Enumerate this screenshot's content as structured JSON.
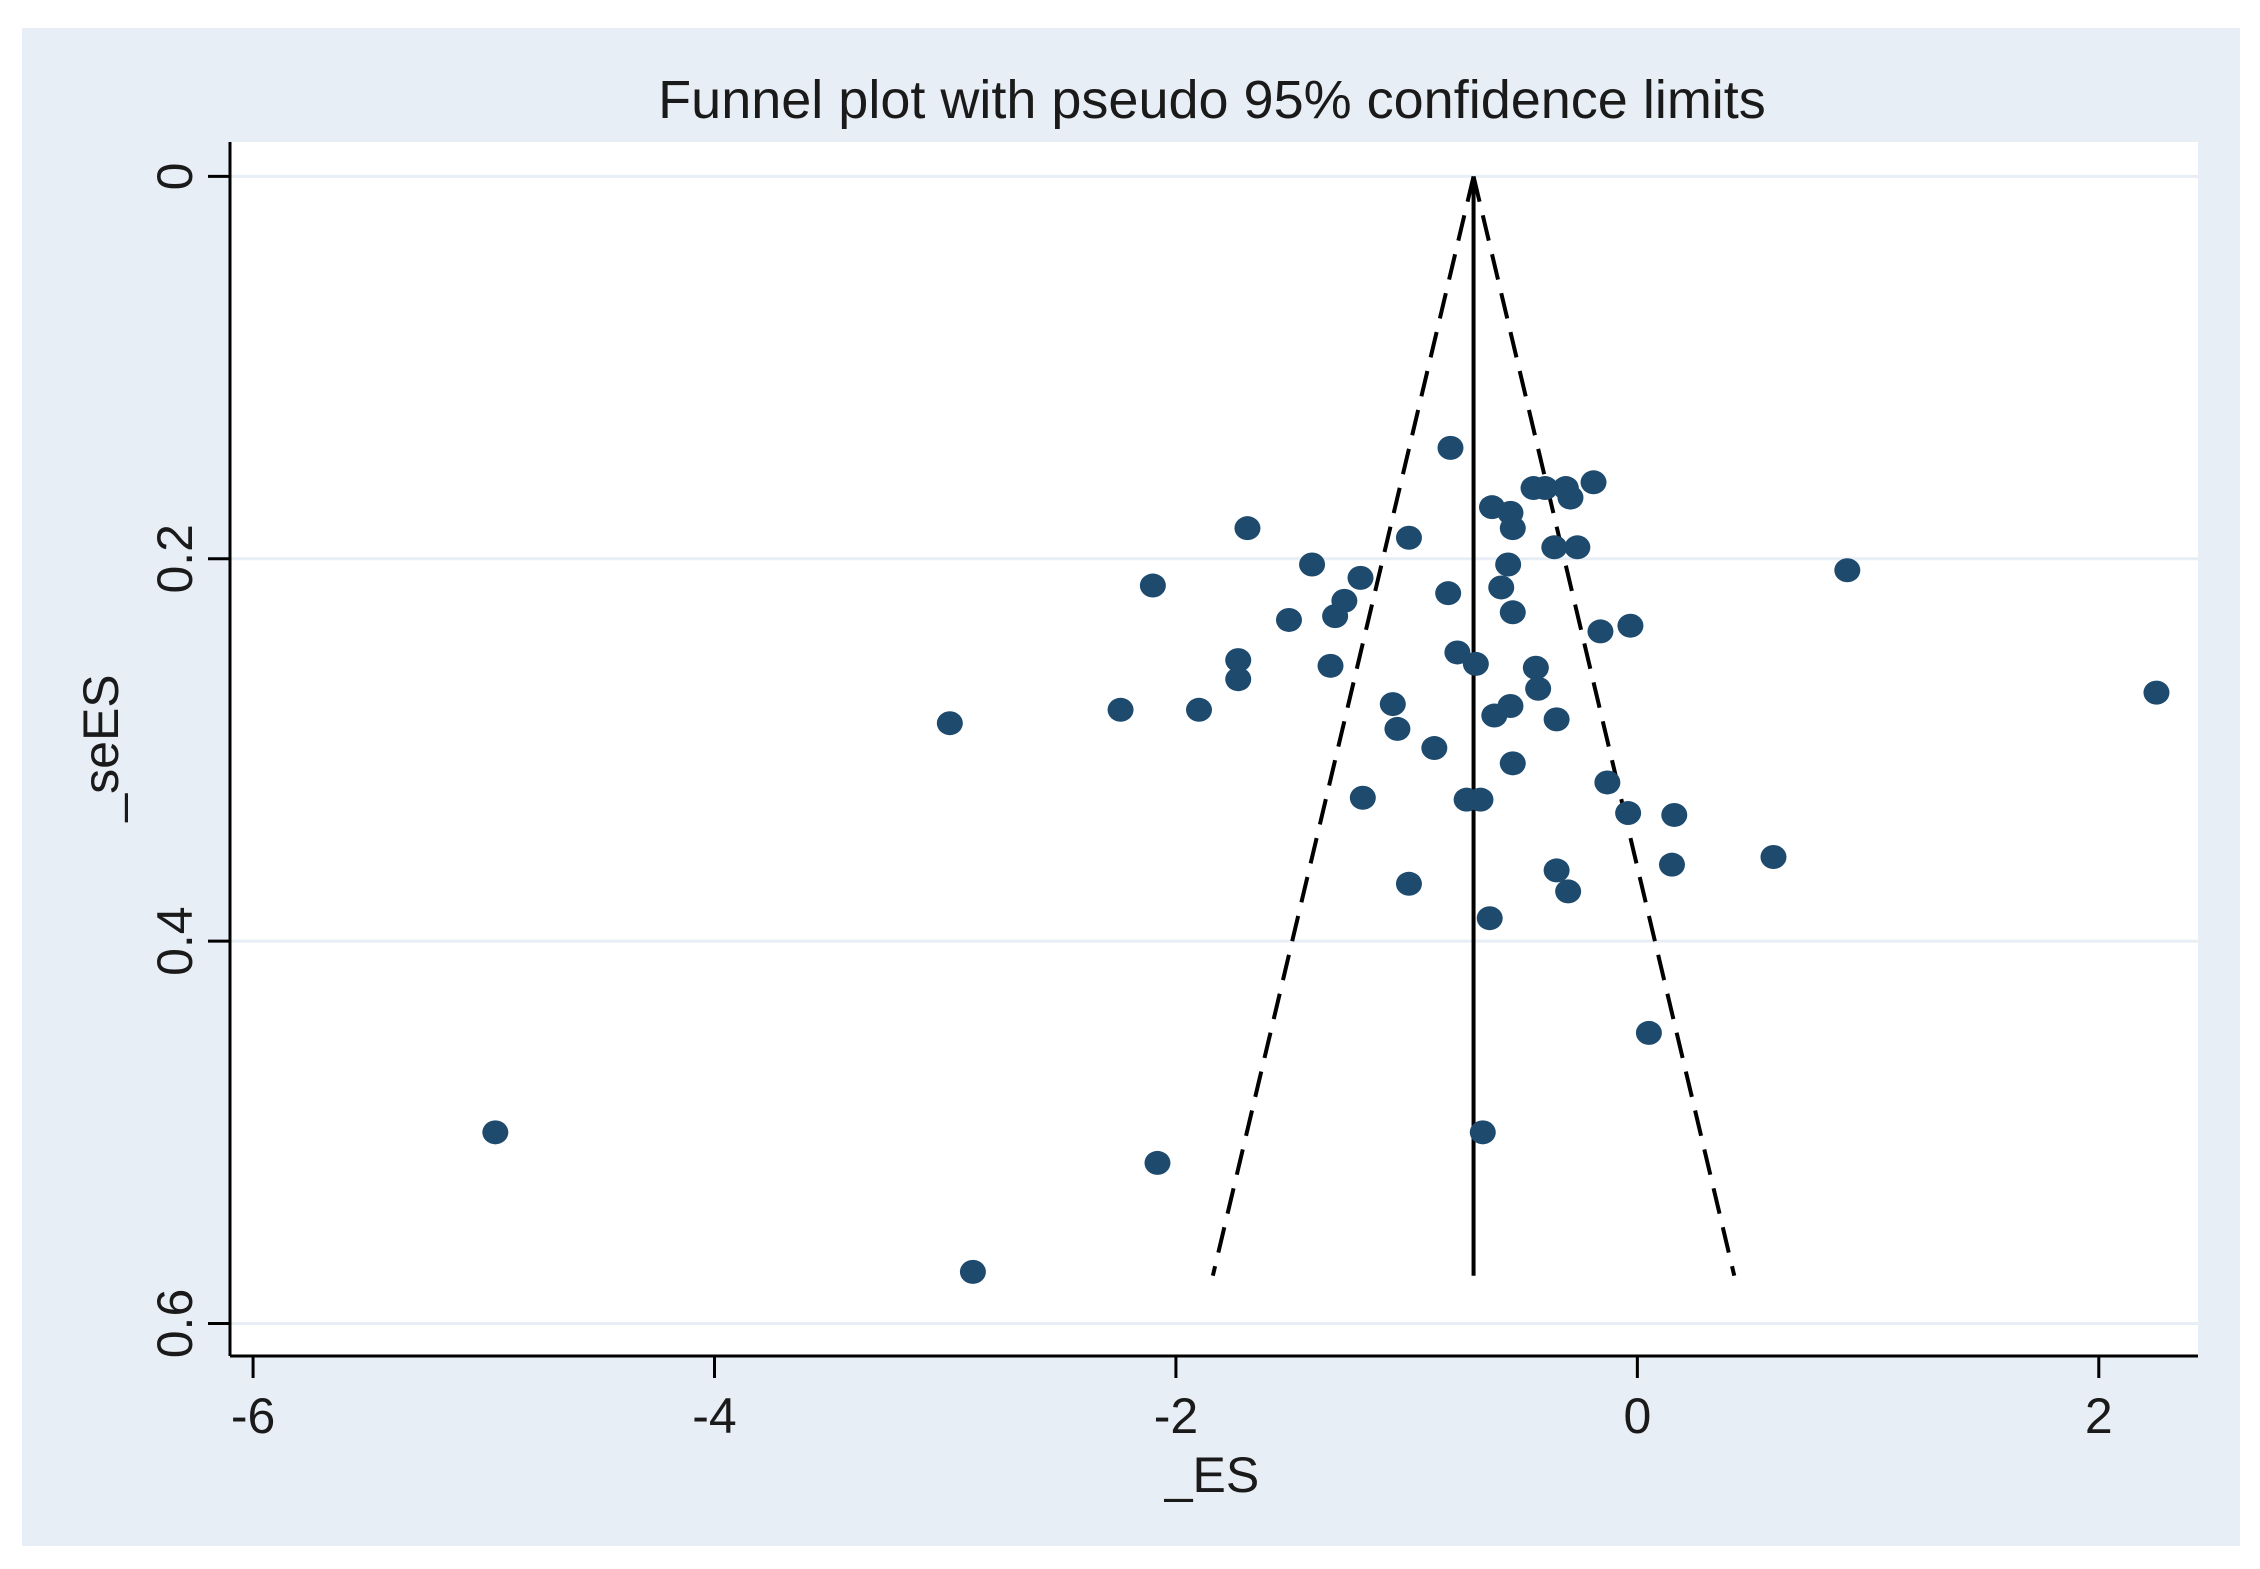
{
  "chart_data": {
    "type": "scatter",
    "title": "Funnel plot with pseudo 95% confidence limits",
    "xlabel": "_ES",
    "ylabel": "_seES",
    "xlim": [
      -6.1,
      2.43
    ],
    "ylim": [
      -0.018,
      0.617
    ],
    "y_reversed": true,
    "xticks": [
      -6,
      -4,
      -2,
      0,
      2
    ],
    "xtick_labels": [
      "-6",
      "-4",
      "-2",
      "0",
      "2"
    ],
    "yticks": [
      0,
      0.2,
      0.4,
      0.6
    ],
    "ytick_labels": [
      "0",
      "0.2",
      "0.4",
      "0.6"
    ],
    "grid": "horizontal",
    "pooled_estimate": -0.71,
    "funnel": {
      "apex": [
        -0.71,
        0
      ],
      "se_max": 0.575,
      "lower_end": -1.84,
      "upper_end": 0.42
    },
    "colors": {
      "outer_bg": "#e8eef5",
      "plot_bg": "#ffffff",
      "points": "#1e4a6e",
      "lines": "#000000",
      "grid": "#e8eef5"
    },
    "points": [
      {
        "x": -0.81,
        "y": 0.142
      },
      {
        "x": -0.45,
        "y": 0.163
      },
      {
        "x": -0.4,
        "y": 0.163
      },
      {
        "x": -0.31,
        "y": 0.163
      },
      {
        "x": -0.29,
        "y": 0.168
      },
      {
        "x": -0.19,
        "y": 0.16
      },
      {
        "x": -0.63,
        "y": 0.173
      },
      {
        "x": -0.55,
        "y": 0.176
      },
      {
        "x": -0.54,
        "y": 0.184
      },
      {
        "x": -1.69,
        "y": 0.184
      },
      {
        "x": -0.99,
        "y": 0.189
      },
      {
        "x": -0.36,
        "y": 0.194
      },
      {
        "x": -0.26,
        "y": 0.194
      },
      {
        "x": -1.41,
        "y": 0.203
      },
      {
        "x": -0.56,
        "y": 0.203
      },
      {
        "x": 0.91,
        "y": 0.206
      },
      {
        "x": -1.2,
        "y": 0.21
      },
      {
        "x": -2.1,
        "y": 0.214
      },
      {
        "x": -0.59,
        "y": 0.215
      },
      {
        "x": -0.82,
        "y": 0.218
      },
      {
        "x": -1.27,
        "y": 0.222
      },
      {
        "x": -1.31,
        "y": 0.23
      },
      {
        "x": -0.54,
        "y": 0.228
      },
      {
        "x": -1.51,
        "y": 0.232
      },
      {
        "x": -0.03,
        "y": 0.235
      },
      {
        "x": -0.16,
        "y": 0.238
      },
      {
        "x": -0.78,
        "y": 0.249
      },
      {
        "x": -1.73,
        "y": 0.253
      },
      {
        "x": -0.7,
        "y": 0.255
      },
      {
        "x": -1.33,
        "y": 0.256
      },
      {
        "x": -0.44,
        "y": 0.257
      },
      {
        "x": -1.73,
        "y": 0.263
      },
      {
        "x": -0.43,
        "y": 0.268
      },
      {
        "x": 2.25,
        "y": 0.27
      },
      {
        "x": -1.06,
        "y": 0.276
      },
      {
        "x": -0.55,
        "y": 0.277
      },
      {
        "x": -2.24,
        "y": 0.279
      },
      {
        "x": -1.9,
        "y": 0.279
      },
      {
        "x": -0.62,
        "y": 0.282
      },
      {
        "x": -0.35,
        "y": 0.284
      },
      {
        "x": -2.98,
        "y": 0.286
      },
      {
        "x": -1.04,
        "y": 0.289
      },
      {
        "x": -0.88,
        "y": 0.299
      },
      {
        "x": -0.54,
        "y": 0.307
      },
      {
        "x": -0.13,
        "y": 0.317
      },
      {
        "x": -1.19,
        "y": 0.325
      },
      {
        "x": -0.74,
        "y": 0.326
      },
      {
        "x": -0.68,
        "y": 0.326
      },
      {
        "x": -0.04,
        "y": 0.333
      },
      {
        "x": 0.16,
        "y": 0.334
      },
      {
        "x": 0.59,
        "y": 0.356
      },
      {
        "x": 0.15,
        "y": 0.36
      },
      {
        "x": -0.35,
        "y": 0.363
      },
      {
        "x": -0.99,
        "y": 0.37
      },
      {
        "x": -0.3,
        "y": 0.374
      },
      {
        "x": -0.64,
        "y": 0.388
      },
      {
        "x": 0.05,
        "y": 0.448
      },
      {
        "x": -4.95,
        "y": 0.5
      },
      {
        "x": -0.67,
        "y": 0.5
      },
      {
        "x": -2.08,
        "y": 0.516
      },
      {
        "x": -2.88,
        "y": 0.573
      }
    ]
  }
}
